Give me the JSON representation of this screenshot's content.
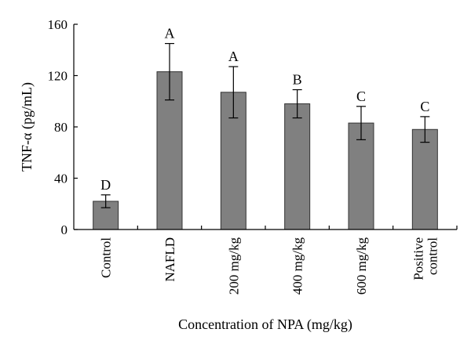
{
  "chart_data": {
    "type": "bar",
    "categories": [
      [
        "Control"
      ],
      [
        "NAFLD"
      ],
      [
        "200 mg/kg"
      ],
      [
        "400 mg/kg"
      ],
      [
        "600 mg/kg"
      ],
      [
        "Positive",
        "control"
      ]
    ],
    "values": [
      22,
      123,
      107,
      98,
      83,
      78
    ],
    "errors": [
      5,
      22,
      20,
      11,
      13,
      10
    ],
    "significance": [
      "D",
      "A",
      "A",
      "B",
      "C",
      "C"
    ],
    "xlabel": "Concentration of NPA (mg/kg)",
    "ylabel": "TNF-α (pg/mL)",
    "ylim": [
      0,
      160
    ],
    "yticks": [
      0,
      40,
      80,
      120,
      160
    ],
    "bar_color": "#808080",
    "grid": false,
    "legend": "none"
  }
}
